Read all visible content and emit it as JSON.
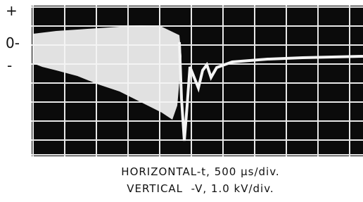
{
  "axis_labels": {
    "plus": "+",
    "zero": "0-",
    "minus": "-"
  },
  "caption": {
    "line1": "HORIZONTAL-t, 500 µs/div.",
    "line2": "VERTICAL  -V, 1.0 kV/div."
  }
}
